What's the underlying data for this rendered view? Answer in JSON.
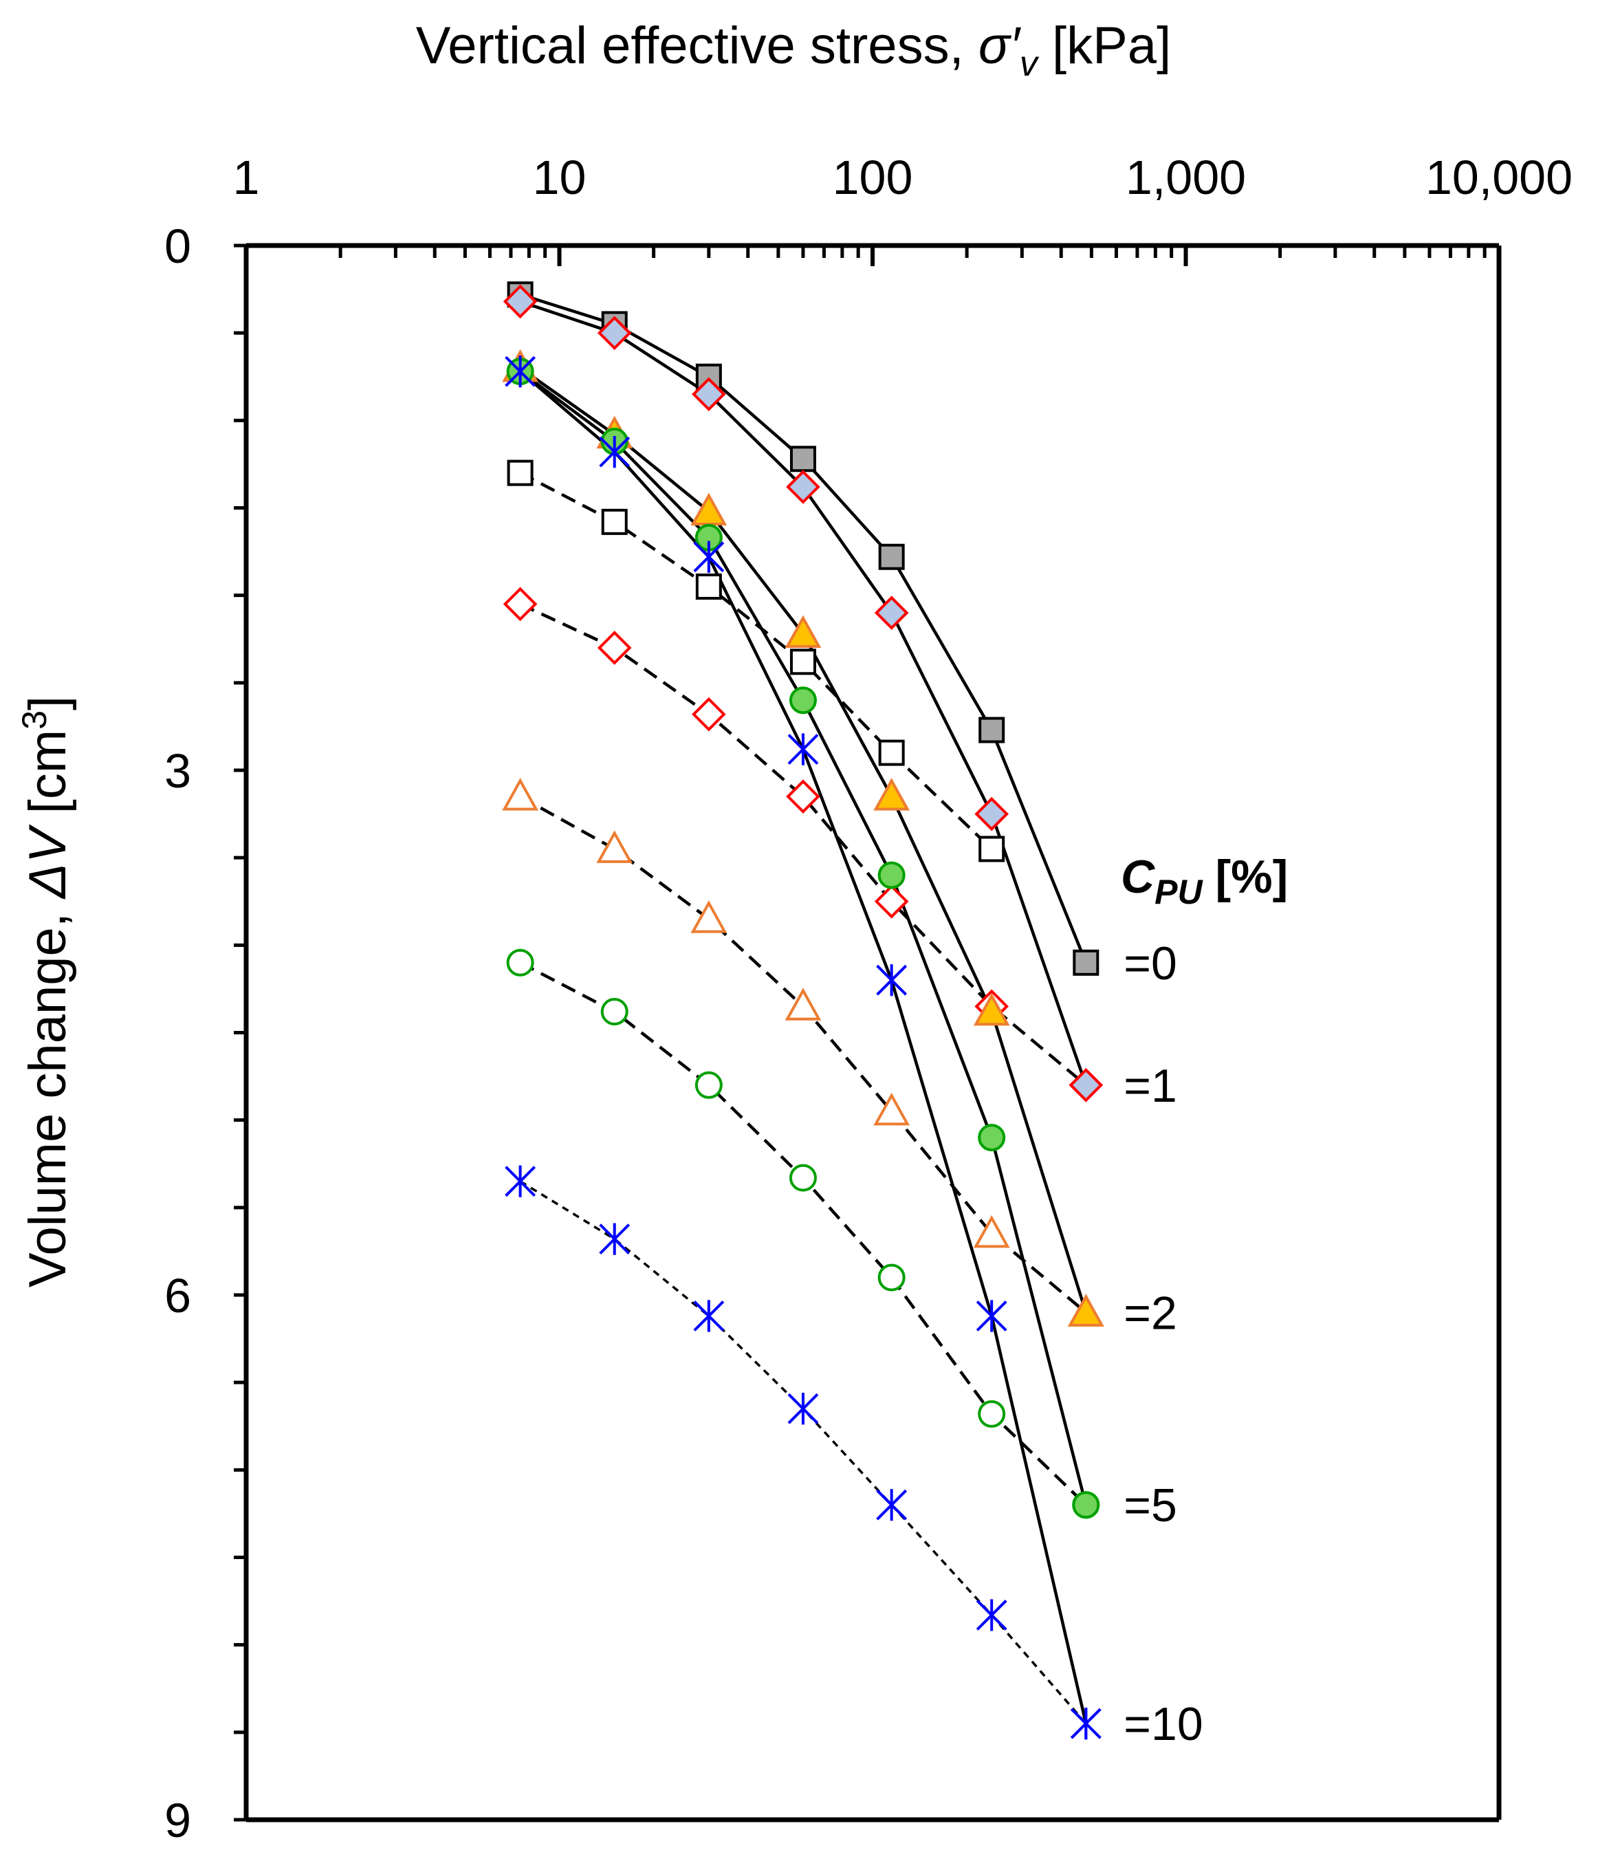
{
  "chart_data": {
    "type": "scatter",
    "x_scale": "log",
    "xlim": [
      1,
      10000
    ],
    "ylim": [
      0,
      9
    ],
    "y_inverted": true,
    "x_axis_position": "top",
    "xlabel_parts": {
      "main": "Vertical effective stress, ",
      "sym": "σ′",
      "sub": "v",
      "unit": " [kPa]"
    },
    "ylabel_parts": {
      "main": "Volume change, ",
      "sym": "ΔV",
      "unit": " [cm",
      "sup": "3",
      "close": "]"
    },
    "x_ticks": [
      {
        "value": 1,
        "label": "1"
      },
      {
        "value": 10,
        "label": "10"
      },
      {
        "value": 100,
        "label": "100"
      },
      {
        "value": 1000,
        "label": "1,000"
      },
      {
        "value": 10000,
        "label": "10,000"
      }
    ],
    "y_ticks": [
      {
        "value": 0,
        "label": "0"
      },
      {
        "value": 3,
        "label": "3"
      },
      {
        "value": 6,
        "label": "6"
      },
      {
        "value": 9,
        "label": "9"
      }
    ],
    "y_minor_step": 0.5,
    "legend": {
      "title_main": "C",
      "title_sub": "PU",
      "title_unit": " [%]",
      "placement": "right"
    },
    "series": [
      {
        "name": "CPU=0 loading",
        "label": "=0",
        "marker": "square",
        "fill": "#a6a6a6",
        "stroke": "#000000",
        "line": "solid",
        "x": [
          7.5,
          15,
          30,
          60,
          115,
          240,
          480
        ],
        "y": [
          0.28,
          0.45,
          0.75,
          1.22,
          1.78,
          2.77,
          4.1
        ]
      },
      {
        "name": "CPU=1 loading",
        "label": "=1",
        "marker": "diamond",
        "fill": "#b4c7e7",
        "stroke": "#ff0000",
        "line": "solid",
        "x": [
          7.5,
          15,
          30,
          60,
          115,
          240,
          480
        ],
        "y": [
          0.32,
          0.5,
          0.85,
          1.38,
          2.1,
          3.25,
          4.8
        ]
      },
      {
        "name": "CPU=2 loading",
        "label": "=2",
        "marker": "triangle",
        "fill": "#ffc000",
        "stroke": "#ed7d31",
        "line": "solid",
        "x": [
          7.5,
          15,
          30,
          60,
          115,
          240,
          480
        ],
        "y": [
          0.7,
          1.08,
          1.52,
          2.22,
          3.15,
          4.38,
          6.1
        ]
      },
      {
        "name": "CPU=5 loading",
        "label": "=5",
        "marker": "circle",
        "fill": "#70d35a",
        "stroke": "#00a000",
        "line": "solid",
        "x": [
          7.5,
          15,
          30,
          60,
          115,
          240,
          480
        ],
        "y": [
          0.72,
          1.12,
          1.67,
          2.6,
          3.6,
          5.1,
          7.2
        ]
      },
      {
        "name": "CPU=10 loading",
        "label": "=10",
        "marker": "asterisk",
        "fill": "none",
        "stroke": "#0000ff",
        "line": "solid",
        "x": [
          7.5,
          15,
          30,
          60,
          115,
          240,
          480
        ],
        "y": [
          0.72,
          1.18,
          1.78,
          2.88,
          4.2,
          6.12,
          8.45
        ]
      },
      {
        "name": "CPU=0 reference",
        "marker": "square",
        "fill": "#ffffff",
        "stroke": "#000000",
        "line": "dashed",
        "x": [
          7.5,
          15,
          30,
          60,
          115,
          240
        ],
        "y": [
          1.3,
          1.58,
          1.95,
          2.38,
          2.9,
          3.45
        ]
      },
      {
        "name": "CPU=1 reference",
        "marker": "diamond",
        "fill": "#ffffff",
        "stroke": "#ff0000",
        "line": "dashed",
        "x": [
          7.5,
          15,
          30,
          60,
          115,
          240,
          480
        ],
        "y": [
          2.05,
          2.3,
          2.68,
          3.15,
          3.75,
          4.35,
          4.8
        ]
      },
      {
        "name": "CPU=2 reference",
        "marker": "triangle",
        "fill": "#ffffff",
        "stroke": "#ed7d31",
        "line": "dashed",
        "x": [
          7.5,
          15,
          30,
          60,
          115,
          240,
          480
        ],
        "y": [
          3.15,
          3.45,
          3.85,
          4.35,
          4.95,
          5.65,
          6.1
        ]
      },
      {
        "name": "CPU=5 reference",
        "marker": "circle",
        "fill": "#ffffff",
        "stroke": "#00a000",
        "line": "dashed",
        "x": [
          7.5,
          15,
          30,
          60,
          115,
          240,
          480
        ],
        "y": [
          4.1,
          4.38,
          4.8,
          5.33,
          5.9,
          6.68,
          7.2
        ]
      },
      {
        "name": "CPU=10 reference",
        "marker": "asterisk",
        "fill": "none",
        "stroke": "#0000ff",
        "line": "dotted",
        "x": [
          7.5,
          15,
          30,
          60,
          115,
          240,
          480
        ],
        "y": [
          5.35,
          5.68,
          6.12,
          6.65,
          7.2,
          7.83,
          8.45
        ]
      }
    ]
  }
}
